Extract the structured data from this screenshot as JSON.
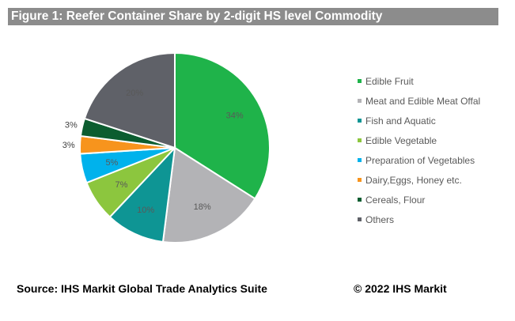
{
  "chart_data": {
    "type": "pie",
    "title": "Figure 1: Reefer Container Share by 2-digit HS level Commodity",
    "slices": [
      {
        "label": "Edible Fruit",
        "value": 34,
        "display": "34%",
        "color": "#1fb34a"
      },
      {
        "label": "Meat and Edible Meat Offal",
        "value": 18,
        "display": "18%",
        "color": "#b3b3b6"
      },
      {
        "label": "Fish and Aquatic",
        "value": 10,
        "display": "10%",
        "color": "#0e9594"
      },
      {
        "label": "Edible Vegetable",
        "value": 7,
        "display": "7%",
        "color": "#8cc63e"
      },
      {
        "label": "Preparation of Vegetables",
        "value": 5,
        "display": "5%",
        "color": "#00b2ec"
      },
      {
        "label": "Dairy,Eggs, Honey etc.",
        "value": 3,
        "display": "3%",
        "color": "#f7941d"
      },
      {
        "label": "Cereals, Flour",
        "value": 3,
        "display": "3%",
        "color": "#0c5d30"
      },
      {
        "label": "Others",
        "value": 20,
        "display": "20%",
        "color": "#5f6168"
      }
    ],
    "legend_position": "right"
  },
  "footer": {
    "source": "Source: IHS Markit Global Trade Analytics Suite",
    "copyright": "© 2022 IHS Markit"
  }
}
